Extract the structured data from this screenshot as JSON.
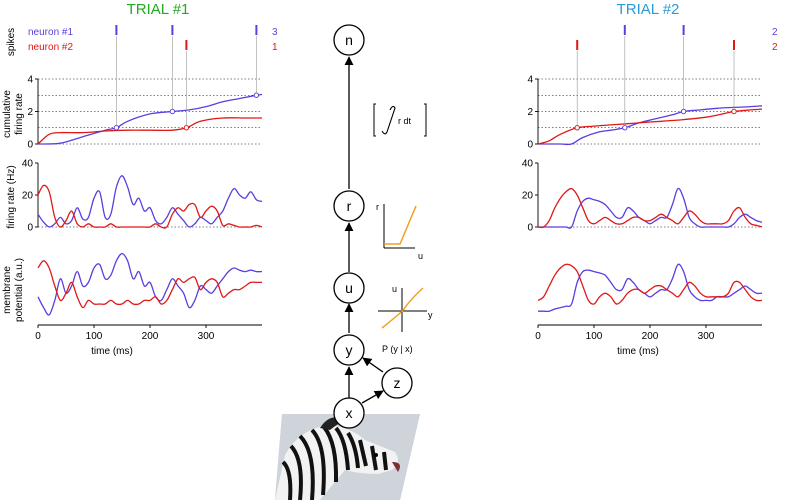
{
  "colors": {
    "trial1_title": "#22aa22",
    "trial2_title": "#2a9ad8",
    "neuron1": "#5a3ee0",
    "neuron2": "#e01818",
    "nonlinearity": "#f0a020",
    "guide": "#999999"
  },
  "trials": [
    {
      "title": "TRIAL #1",
      "legend": [
        {
          "name": "neuron #1",
          "count": "3"
        },
        {
          "name": "neuron #2",
          "count": "1"
        }
      ],
      "spikes": {
        "neuron1": [
          140,
          240,
          390
        ],
        "neuron2": [
          265
        ]
      }
    },
    {
      "title": "TRIAL #2",
      "legend": [
        {
          "name": "",
          "count": "2"
        },
        {
          "name": "",
          "count": "2"
        }
      ],
      "spikes": {
        "neuron1": [
          155,
          260
        ],
        "neuron2": [
          70,
          350
        ]
      }
    }
  ],
  "labels": {
    "spikes": "spikes",
    "cumulative": [
      "cumulative",
      "firing rate"
    ],
    "firing_rate": "firing rate (Hz)",
    "membrane": [
      "membrane",
      "potential (a.u.)"
    ],
    "time": "time (ms)"
  },
  "chart_data": [
    {
      "type": "line",
      "panel": "cumulative firing rate",
      "trial": "TRIAL #1",
      "ylim": [
        0,
        4
      ],
      "yticks": [
        0,
        2,
        4
      ],
      "dotted_gridlines": [
        1,
        2,
        3,
        4
      ],
      "series": [
        {
          "x": [
            0,
            40,
            80,
            120,
            140,
            160,
            200,
            240,
            270,
            300,
            330,
            360,
            390,
            400
          ],
          "values": [
            0,
            0.05,
            0.45,
            0.85,
            1.0,
            1.4,
            1.85,
            2.0,
            2.1,
            2.3,
            2.6,
            2.8,
            3.0,
            3.05
          ]
        },
        {
          "x": [
            0,
            20,
            40,
            80,
            120,
            160,
            200,
            240,
            265,
            290,
            330,
            370,
            400
          ],
          "values": [
            0,
            0.6,
            0.7,
            0.7,
            0.8,
            0.85,
            0.85,
            0.85,
            1.0,
            1.4,
            1.6,
            1.6,
            1.6
          ]
        }
      ]
    },
    {
      "type": "line",
      "panel": "firing rate (Hz)",
      "trial": "TRIAL #1",
      "ylim": [
        0,
        40
      ],
      "yticks": [
        0,
        20,
        40
      ],
      "series": [
        {
          "x": [
            0,
            10,
            20,
            30,
            40,
            50,
            60,
            70,
            80,
            90,
            100,
            110,
            120,
            130,
            140,
            150,
            160,
            170,
            180,
            190,
            200,
            210,
            220,
            230,
            240,
            250,
            260,
            270,
            280,
            290,
            300,
            310,
            320,
            330,
            340,
            350,
            360,
            370,
            380,
            390,
            400
          ],
          "values": [
            8,
            3,
            0,
            2,
            6,
            2,
            4,
            12,
            5,
            6,
            18,
            22,
            6,
            8,
            25,
            32,
            25,
            14,
            18,
            10,
            12,
            4,
            2,
            6,
            12,
            8,
            4,
            0,
            2,
            6,
            4,
            2,
            6,
            10,
            18,
            24,
            20,
            18,
            22,
            17,
            16
          ]
        },
        {
          "x": [
            0,
            10,
            20,
            30,
            40,
            50,
            60,
            70,
            80,
            90,
            100,
            110,
            120,
            130,
            140,
            150,
            160,
            170,
            180,
            190,
            200,
            210,
            220,
            230,
            240,
            250,
            260,
            270,
            280,
            290,
            300,
            310,
            320,
            330,
            340,
            350,
            360,
            370,
            380,
            390,
            400
          ],
          "values": [
            20,
            26,
            22,
            6,
            0,
            4,
            10,
            2,
            0,
            2,
            0,
            0,
            0,
            2,
            0,
            0,
            0,
            0,
            0,
            0,
            0,
            2,
            0,
            0,
            8,
            12,
            10,
            14,
            14,
            6,
            10,
            13,
            10,
            1,
            2,
            1,
            0,
            0,
            0,
            1,
            0
          ]
        }
      ]
    },
    {
      "type": "line",
      "panel": "membrane potential (a.u.)",
      "trial": "TRIAL #1",
      "xlim": [
        0,
        400
      ],
      "xticks": [
        0,
        100,
        200,
        300
      ],
      "xlabel": "time (ms)",
      "series": [
        {
          "x": [
            0,
            10,
            20,
            30,
            40,
            50,
            60,
            70,
            80,
            90,
            100,
            110,
            120,
            130,
            140,
            150,
            160,
            170,
            180,
            190,
            200,
            210,
            220,
            230,
            240,
            250,
            260,
            270,
            280,
            290,
            300,
            310,
            320,
            330,
            340,
            350,
            360,
            370,
            380,
            390,
            400
          ],
          "values": [
            0.35,
            0.2,
            0.1,
            0.3,
            0.6,
            0.4,
            0.5,
            0.7,
            0.5,
            0.55,
            0.75,
            0.8,
            0.6,
            0.65,
            0.85,
            0.95,
            0.85,
            0.6,
            0.7,
            0.5,
            0.55,
            0.35,
            0.3,
            0.45,
            0.6,
            0.5,
            0.4,
            0.2,
            0.3,
            0.5,
            0.45,
            0.4,
            0.5,
            0.6,
            0.7,
            0.75,
            0.72,
            0.7,
            0.72,
            0.7,
            0.7
          ]
        },
        {
          "x": [
            0,
            10,
            20,
            30,
            40,
            50,
            60,
            70,
            80,
            90,
            100,
            110,
            120,
            130,
            140,
            150,
            160,
            170,
            180,
            190,
            200,
            210,
            220,
            230,
            240,
            250,
            260,
            270,
            280,
            290,
            300,
            310,
            320,
            330,
            340,
            350,
            360,
            370,
            380,
            390,
            400
          ],
          "values": [
            0.75,
            0.85,
            0.75,
            0.5,
            0.3,
            0.4,
            0.55,
            0.35,
            0.2,
            0.3,
            0.25,
            0.25,
            0.25,
            0.3,
            0.25,
            0.25,
            0.3,
            0.25,
            0.25,
            0.3,
            0.3,
            0.35,
            0.25,
            0.3,
            0.45,
            0.6,
            0.55,
            0.6,
            0.62,
            0.45,
            0.55,
            0.6,
            0.55,
            0.35,
            0.4,
            0.45,
            0.45,
            0.5,
            0.55,
            0.55,
            0.55
          ]
        }
      ]
    },
    {
      "type": "line",
      "panel": "cumulative firing rate",
      "trial": "TRIAL #2",
      "ylim": [
        0,
        4
      ],
      "yticks": [
        0,
        2,
        4
      ],
      "dotted_gridlines": [
        1,
        2,
        3,
        4
      ],
      "series": [
        {
          "x": [
            0,
            40,
            60,
            80,
            110,
            130,
            155,
            180,
            210,
            240,
            260,
            290,
            320,
            350,
            380,
            400
          ],
          "values": [
            0,
            0,
            0,
            0.4,
            0.75,
            0.85,
            1.0,
            1.3,
            1.55,
            1.8,
            2.0,
            2.1,
            2.2,
            2.25,
            2.3,
            2.35
          ]
        },
        {
          "x": [
            0,
            20,
            40,
            70,
            100,
            140,
            180,
            220,
            260,
            300,
            330,
            350,
            380,
            400
          ],
          "values": [
            0,
            0.2,
            0.6,
            1.0,
            1.1,
            1.2,
            1.3,
            1.4,
            1.5,
            1.65,
            1.85,
            2.0,
            2.1,
            2.15
          ]
        }
      ]
    },
    {
      "type": "line",
      "panel": "firing rate (Hz)",
      "trial": "TRIAL #2",
      "ylim": [
        0,
        40
      ],
      "yticks": [
        0,
        20,
        40
      ],
      "series": [
        {
          "x": [
            0,
            10,
            20,
            30,
            40,
            50,
            60,
            70,
            80,
            90,
            100,
            110,
            120,
            130,
            140,
            150,
            160,
            170,
            180,
            190,
            200,
            210,
            220,
            230,
            240,
            250,
            260,
            270,
            280,
            290,
            300,
            310,
            320,
            330,
            340,
            350,
            360,
            370,
            380,
            390,
            400
          ],
          "values": [
            0,
            0,
            0,
            0,
            0,
            0,
            0,
            10,
            16,
            18,
            17,
            16,
            14,
            10,
            6,
            6,
            12,
            10,
            6,
            4,
            2,
            4,
            6,
            6,
            14,
            24,
            18,
            6,
            2,
            0,
            0,
            0,
            0,
            0,
            0,
            2,
            6,
            8,
            6,
            4,
            3
          ]
        },
        {
          "x": [
            0,
            10,
            20,
            30,
            40,
            50,
            60,
            70,
            80,
            90,
            100,
            110,
            120,
            130,
            140,
            150,
            160,
            170,
            180,
            190,
            200,
            210,
            220,
            230,
            240,
            250,
            260,
            270,
            280,
            290,
            300,
            310,
            320,
            330,
            340,
            350,
            360,
            370,
            380,
            390,
            400
          ],
          "values": [
            0,
            0,
            4,
            12,
            18,
            22,
            24,
            20,
            12,
            4,
            2,
            4,
            6,
            4,
            2,
            2,
            4,
            6,
            6,
            4,
            4,
            6,
            8,
            6,
            4,
            2,
            6,
            10,
            8,
            4,
            2,
            2,
            2,
            2,
            4,
            10,
            12,
            6,
            2,
            1,
            0
          ]
        }
      ]
    },
    {
      "type": "line",
      "panel": "membrane potential (a.u.)",
      "trial": "TRIAL #2",
      "xlim": [
        0,
        400
      ],
      "xticks": [
        0,
        100,
        200,
        300
      ],
      "xlabel": "time (ms)",
      "series": [
        {
          "x": [
            0,
            10,
            20,
            30,
            40,
            50,
            60,
            70,
            80,
            90,
            100,
            110,
            120,
            130,
            140,
            150,
            160,
            170,
            180,
            190,
            200,
            210,
            220,
            230,
            240,
            250,
            260,
            270,
            280,
            290,
            300,
            310,
            320,
            330,
            340,
            350,
            360,
            370,
            380,
            390,
            400
          ],
          "values": [
            0.15,
            0.15,
            0.15,
            0.18,
            0.2,
            0.22,
            0.25,
            0.55,
            0.7,
            0.72,
            0.7,
            0.68,
            0.65,
            0.55,
            0.45,
            0.45,
            0.6,
            0.55,
            0.45,
            0.4,
            0.35,
            0.4,
            0.45,
            0.45,
            0.6,
            0.8,
            0.7,
            0.45,
            0.35,
            0.3,
            0.3,
            0.3,
            0.35,
            0.35,
            0.35,
            0.4,
            0.45,
            0.5,
            0.45,
            0.4,
            0.4
          ]
        },
        {
          "x": [
            0,
            10,
            20,
            30,
            40,
            50,
            60,
            70,
            80,
            90,
            100,
            110,
            120,
            130,
            140,
            150,
            160,
            170,
            180,
            190,
            200,
            210,
            220,
            230,
            240,
            250,
            260,
            270,
            280,
            290,
            300,
            310,
            320,
            330,
            340,
            350,
            360,
            370,
            380,
            390,
            400
          ],
          "values": [
            0.3,
            0.35,
            0.5,
            0.65,
            0.75,
            0.8,
            0.78,
            0.7,
            0.5,
            0.3,
            0.25,
            0.35,
            0.4,
            0.35,
            0.25,
            0.3,
            0.4,
            0.45,
            0.45,
            0.4,
            0.45,
            0.5,
            0.5,
            0.45,
            0.4,
            0.35,
            0.45,
            0.55,
            0.5,
            0.4,
            0.35,
            0.35,
            0.35,
            0.35,
            0.4,
            0.55,
            0.55,
            0.45,
            0.35,
            0.3,
            0.3
          ]
        }
      ]
    }
  ],
  "diagram": {
    "nodes": [
      {
        "id": "n",
        "label": "n"
      },
      {
        "id": "r",
        "label": "r"
      },
      {
        "id": "u",
        "label": "u"
      },
      {
        "id": "y",
        "label": "y"
      },
      {
        "id": "z",
        "label": "z"
      },
      {
        "id": "x",
        "label": "x"
      }
    ],
    "integral_label": "r dt",
    "relu_inset": {
      "ylabel": "r",
      "xlabel": "u"
    },
    "linear_inset": {
      "ylabel": "u",
      "xlabel": "y"
    },
    "likelihood_label": "P (y | x)"
  }
}
